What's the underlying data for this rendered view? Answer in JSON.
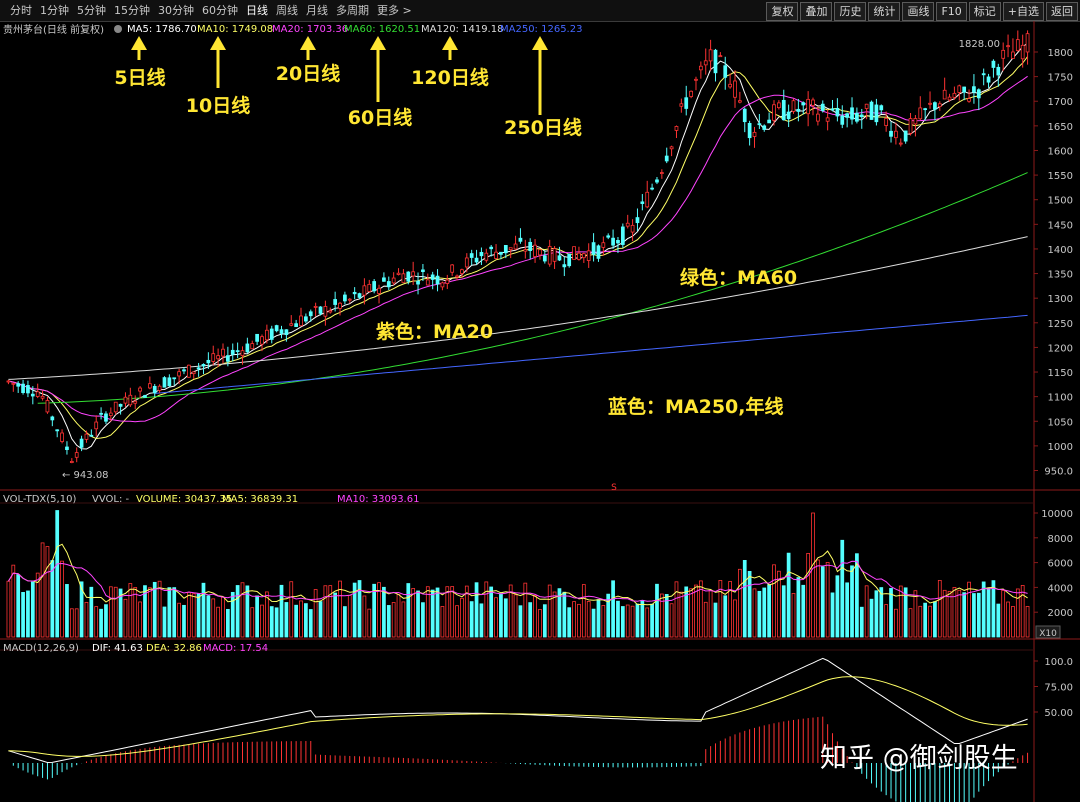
{
  "toolbar": {
    "period_tabs": [
      {
        "label": "分时"
      },
      {
        "label": "1分钟"
      },
      {
        "label": "5分钟"
      },
      {
        "label": "15分钟"
      },
      {
        "label": "30分钟"
      },
      {
        "label": "60分钟"
      },
      {
        "label": "日线",
        "active": true
      },
      {
        "label": "周线"
      },
      {
        "label": "月线"
      },
      {
        "label": "多周期"
      },
      {
        "label": "更多 >"
      }
    ],
    "buttons": [
      "复权",
      "叠加",
      "历史",
      "统计",
      "画线",
      "F10",
      "标记",
      "+自选",
      "返回"
    ]
  },
  "main_panel": {
    "stock_title": "贵州茅台(日线 前复权)",
    "ma_legend": [
      {
        "text": "MA5: 1786.70",
        "color": "#ffffff"
      },
      {
        "text": "MA10: 1749.08",
        "color": "#ffff66"
      },
      {
        "text": "MA20: 1703.36",
        "color": "#ff44ff"
      },
      {
        "text": "MA60: 1620.51",
        "color": "#33dd33"
      },
      {
        "text": "MA120: 1419.18",
        "color": "#dddddd"
      },
      {
        "text": "MA250: 1265.23",
        "color": "#4466ff"
      }
    ],
    "y_ticks": [
      "1800",
      "1750",
      "1700",
      "1650",
      "1600",
      "1550",
      "1500",
      "1450",
      "1400",
      "1350",
      "1300",
      "1250",
      "1200",
      "1150",
      "1100",
      "1050",
      "1000",
      "950.0"
    ],
    "high_label": "1828.00",
    "low_label": "943.08",
    "s_marker": "S"
  },
  "annotations": {
    "arrows": [
      {
        "label": "5日线"
      },
      {
        "label": "10日线"
      },
      {
        "label": "20日线"
      },
      {
        "label": "60日线"
      },
      {
        "label": "120日线"
      },
      {
        "label": "250日线"
      }
    ],
    "colour_notes": [
      "紫色：MA20",
      "绿色：MA60",
      "蓝色：MA250,年线"
    ]
  },
  "volume_panel": {
    "legend": [
      {
        "text": "VOL-TDX(5,10)",
        "color": "#c8c8c8"
      },
      {
        "text": "VVOL: -",
        "color": "#c8c8c8"
      },
      {
        "text": "VOLUME: 30437.35",
        "color": "#ffff66"
      },
      {
        "text": "MA5: 36839.31",
        "color": "#ffff66"
      },
      {
        "text": "MA10: 33093.61",
        "color": "#ff44ff"
      }
    ],
    "y_ticks": [
      "10000",
      "8000",
      "6000",
      "4000",
      "2000"
    ],
    "unit": "X10"
  },
  "macd_panel": {
    "legend": [
      {
        "text": "MACD(12,26,9)",
        "color": "#c8c8c8"
      },
      {
        "text": "DIF: 41.63",
        "color": "#ffffff"
      },
      {
        "text": "DEA: 32.86",
        "color": "#ffff66"
      },
      {
        "text": "MACD: 17.54",
        "color": "#ff44ff"
      }
    ],
    "y_ticks": [
      "100.0",
      "75.00",
      "50.00"
    ]
  },
  "watermark": "知乎 @御剑股生",
  "colors": {
    "up": "#ff3333",
    "down": "#54ffff",
    "ma5": "#ffffff",
    "ma10": "#ffff66",
    "ma20": "#ff44ff",
    "ma60": "#33dd33",
    "ma120": "#dddddd",
    "ma250": "#4466ff",
    "annotation": "#ffe633"
  }
}
